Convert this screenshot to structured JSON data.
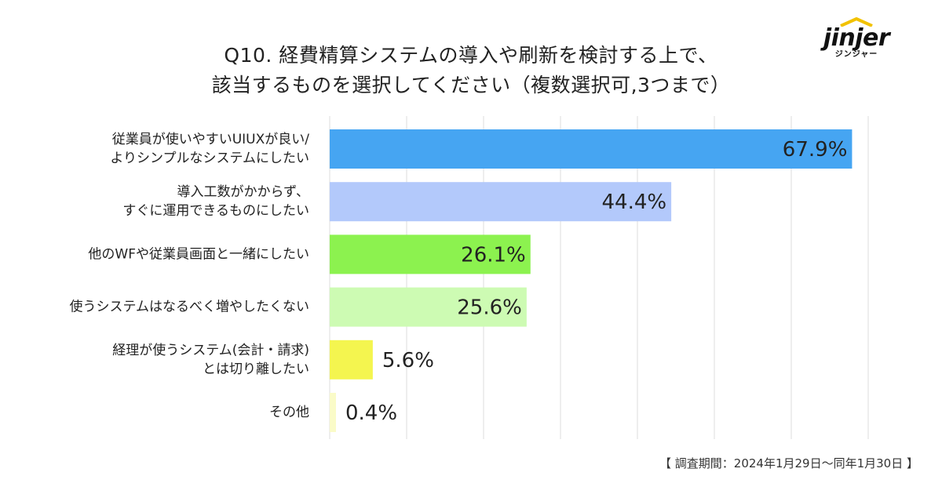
{
  "brand": {
    "name": "jinjer",
    "sub": "ジンジャー"
  },
  "title": {
    "line1": "Q10. 経費精算システムの導入や刷新を検討する上で、",
    "line2": "該当するものを選択してください（複数選択可,3つまで）"
  },
  "footnote": "【 調査期間：2024年1月29日～同年1月30日 】",
  "chart_data": {
    "type": "bar",
    "orientation": "horizontal",
    "categories": [
      [
        "従業員が使いやすいUIUXが良い/",
        "よりシンプルなシステムにしたい"
      ],
      [
        "導入工数がかからず、",
        "すぐに運用できるものにしたい"
      ],
      [
        "他のWFや従業員画面と一緒にしたい"
      ],
      [
        "使うシステムはなるべく増やしたくない"
      ],
      [
        "経理が使うシステム(会計・請求)",
        "とは切り離したい"
      ],
      [
        "その他"
      ]
    ],
    "values": [
      67.9,
      44.4,
      26.1,
      25.6,
      5.6,
      0.4
    ],
    "value_labels": [
      "67.9%",
      "44.4%",
      "26.1%",
      "25.6%",
      "5.6%",
      "0.4%"
    ],
    "colors": [
      "#46a5f2",
      "#b3c9fb",
      "#8cf24f",
      "#cdfbb3",
      "#f4f54f",
      "#fafbc8"
    ],
    "xlim": [
      0,
      70
    ],
    "grid": true,
    "unit": "%"
  }
}
